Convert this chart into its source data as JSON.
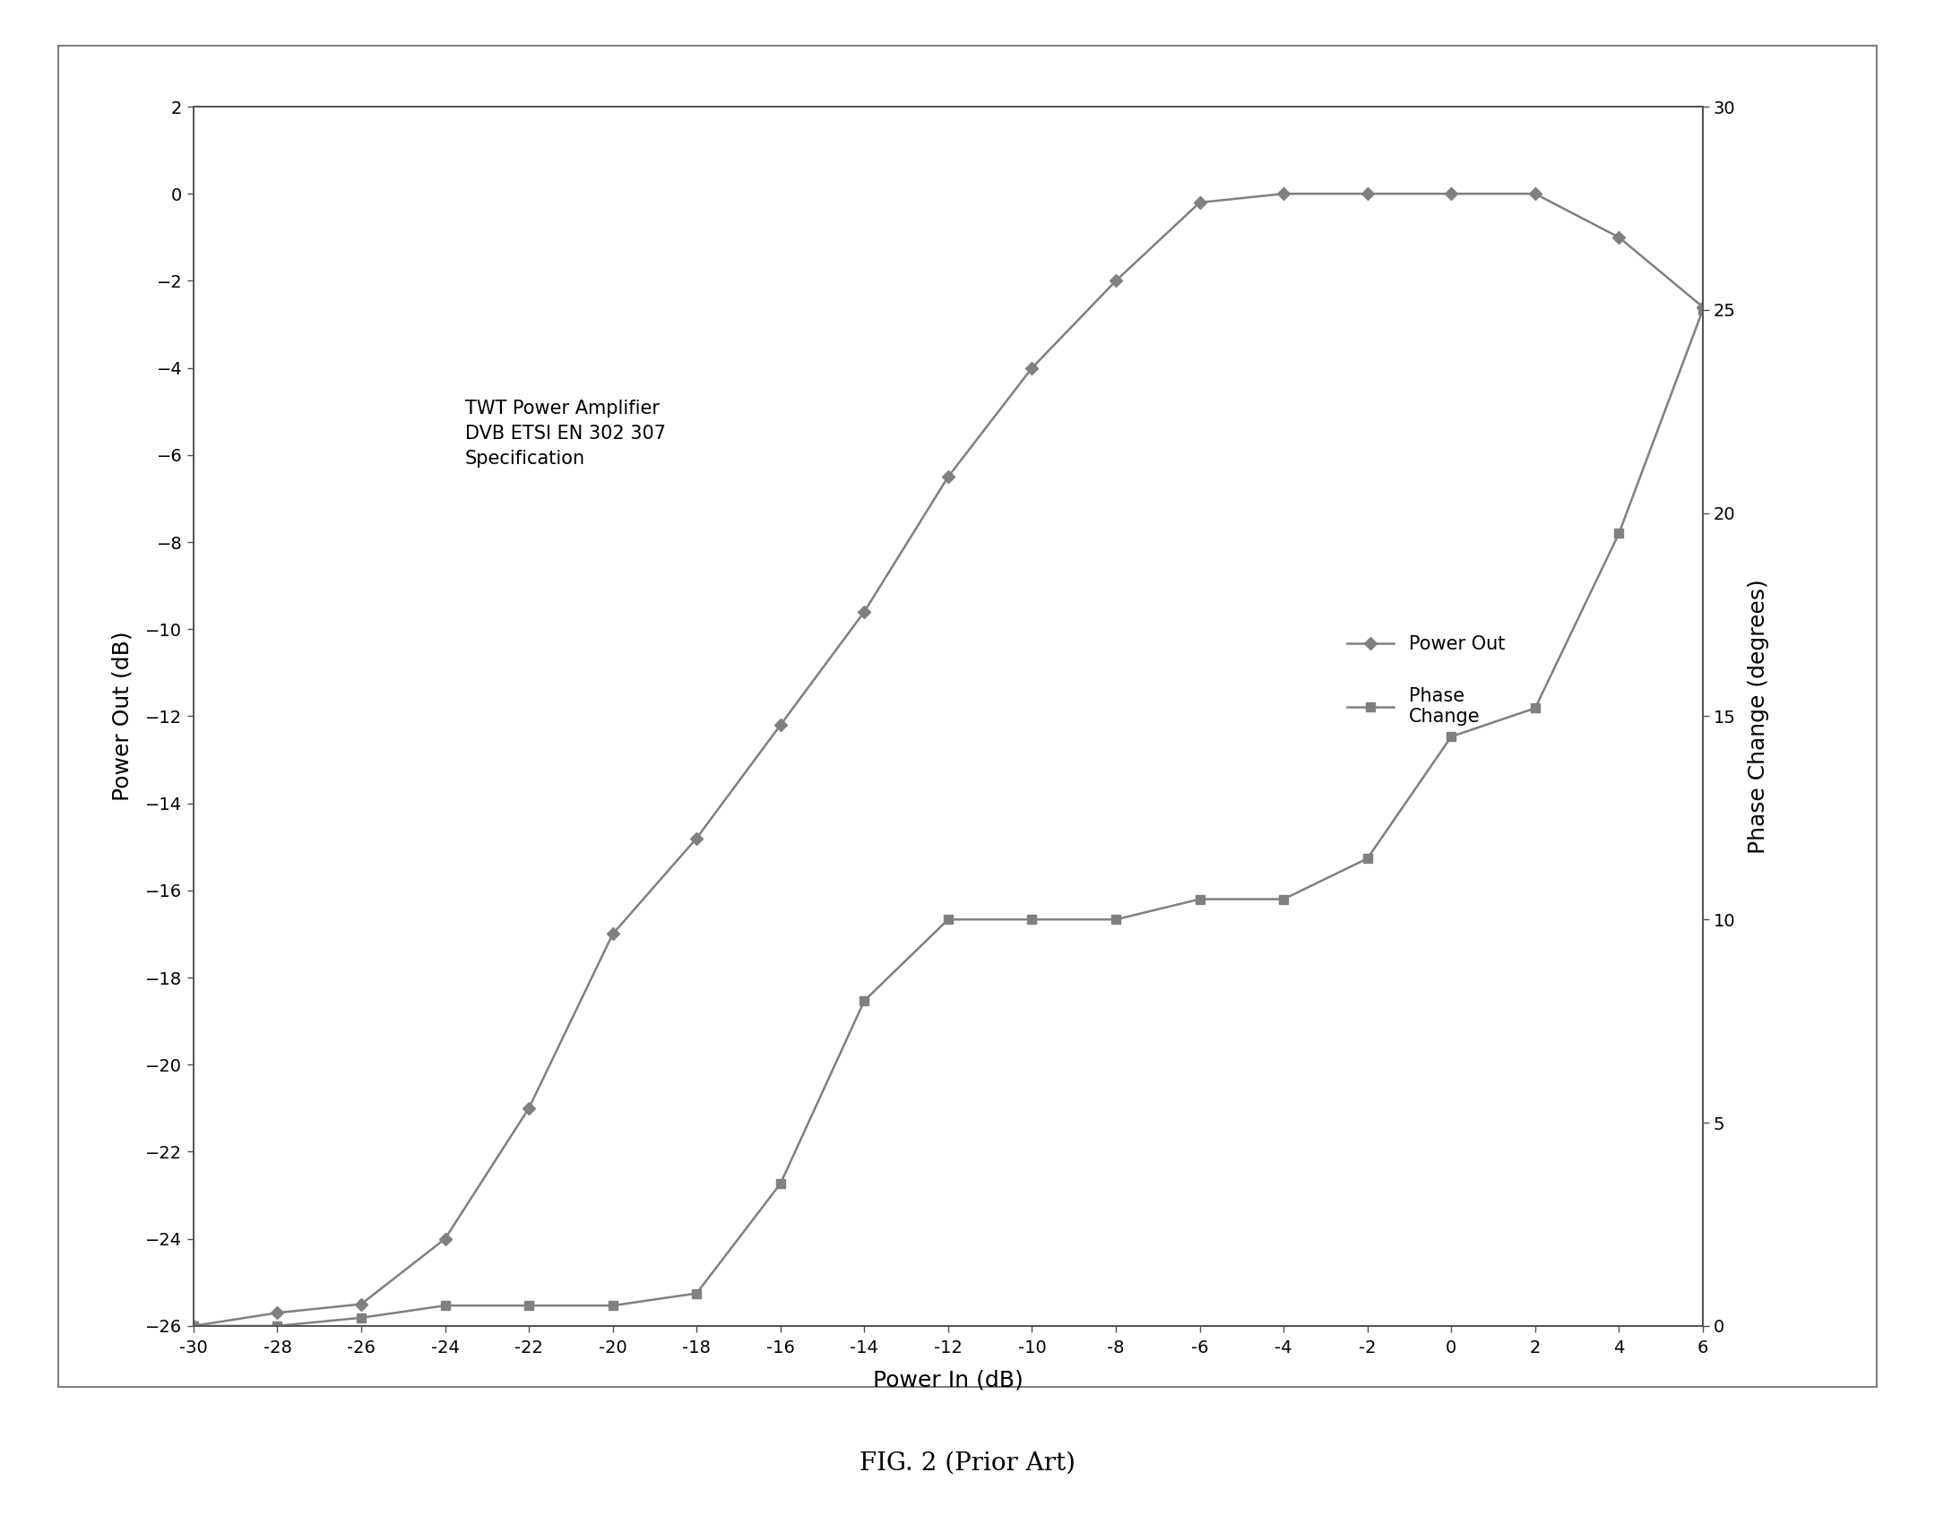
{
  "title": "FIG. 2 (Prior Art)",
  "annotation": "TWT Power Amplifier\nDVB ETSI EN 302 307\nSpecification",
  "xlabel": "Power In (dB)",
  "ylabel_left": "Power Out (dB)",
  "ylabel_right": "Phase Change (degrees)",
  "xlim": [
    -30,
    6
  ],
  "ylim_left": [
    -26,
    2
  ],
  "ylim_right": [
    0,
    30
  ],
  "xticks": [
    -30,
    -28,
    -26,
    -24,
    -22,
    -20,
    -18,
    -16,
    -14,
    -12,
    -10,
    -8,
    -6,
    -4,
    -2,
    0,
    2,
    4,
    6
  ],
  "yticks_left": [
    -26,
    -24,
    -22,
    -20,
    -18,
    -16,
    -14,
    -12,
    -10,
    -8,
    -6,
    -4,
    -2,
    0,
    2
  ],
  "yticks_right": [
    0,
    5,
    10,
    15,
    20,
    25,
    30
  ],
  "power_out_x": [
    -30,
    -28,
    -26,
    -24,
    -22,
    -20,
    -18,
    -16,
    -14,
    -12,
    -10,
    -8,
    -6,
    -4,
    -2,
    0,
    2,
    4,
    6
  ],
  "power_out_y": [
    -26.0,
    -25.7,
    -25.5,
    -24.0,
    -21.0,
    -17.0,
    -14.8,
    -12.2,
    -9.6,
    -6.5,
    -4.0,
    -2.0,
    -0.2,
    0.0,
    0.0,
    0.0,
    0.0,
    -1.0,
    -2.6
  ],
  "phase_x": [
    -30,
    -28,
    -26,
    -24,
    -22,
    -20,
    -18,
    -16,
    -14,
    -12,
    -10,
    -8,
    -6,
    -4,
    -2,
    0,
    2,
    4,
    6
  ],
  "phase_y": [
    0.0,
    0.0,
    0.2,
    0.5,
    0.5,
    0.5,
    0.8,
    3.5,
    8.0,
    10.0,
    10.0,
    10.0,
    10.5,
    10.5,
    11.5,
    14.5,
    15.2,
    19.5,
    25.0
  ],
  "line_color": "#808080",
  "marker_power": "D",
  "marker_phase": "s",
  "legend_power": "Power Out",
  "legend_phase": "Phase\nChange",
  "background_color": "#ffffff",
  "outer_box_color": "#c0c0c0"
}
